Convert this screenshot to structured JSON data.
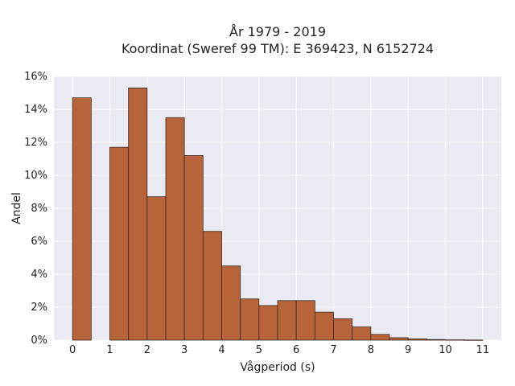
{
  "chart_data": {
    "type": "bar",
    "title_line1": "År 1979 - 2019",
    "title_line2": "Koordinat (Sweref 99 TM): E 369423, N 6152724",
    "xlabel": "Vågperiod (s)",
    "ylabel": "Andel",
    "bin_width": 0.5,
    "x": [
      0,
      0.5,
      1,
      1.5,
      2,
      2.5,
      3,
      3.5,
      4,
      4.5,
      5,
      5.5,
      6,
      6.5,
      7,
      7.5,
      8,
      8.5,
      9,
      9.5,
      10,
      10.5
    ],
    "values": [
      14.7,
      0,
      11.7,
      15.3,
      8.7,
      13.5,
      11.2,
      6.6,
      4.5,
      2.5,
      2.1,
      2.4,
      2.4,
      1.7,
      1.3,
      0.8,
      0.35,
      0.15,
      0.08,
      0.04,
      0.02,
      0.01
    ],
    "xticks": [
      "0",
      "1",
      "2",
      "3",
      "4",
      "5",
      "6",
      "7",
      "8",
      "9",
      "10",
      "11"
    ],
    "yticks": [
      "0%",
      "2%",
      "4%",
      "6%",
      "8%",
      "10%",
      "12%",
      "14%",
      "16%"
    ],
    "xlim": [
      -0.5,
      11.5
    ],
    "ylim": [
      0,
      16
    ],
    "grid": true,
    "colors": {
      "bar_fill": "#b8643b",
      "bar_stroke": "#3a2a20",
      "plot_bg": "#eaeaf2",
      "grid": "#ffffff"
    }
  }
}
